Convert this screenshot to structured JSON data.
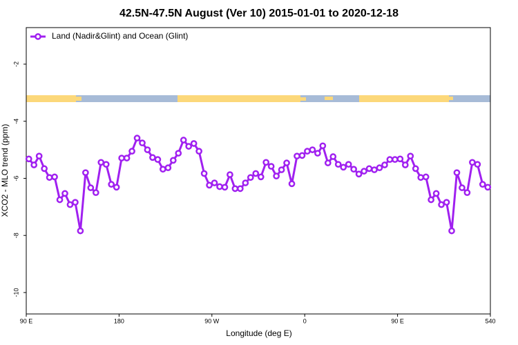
{
  "chart_data": {
    "type": "line",
    "title": "42.5N-47.5N August (Ver 10)   2015-01-01 to 2020-12-18",
    "x_label": "Longitude (deg E)",
    "y_label": "XCO2 - MLO trend (ppm)",
    "x": [
      92.5,
      97.5,
      102.5,
      107.5,
      112.5,
      117.5,
      122.5,
      127.5,
      132.5,
      137.5,
      142.5,
      147.5,
      152.5,
      157.5,
      162.5,
      167.5,
      172.5,
      177.5,
      182.5,
      187.5,
      192.5,
      197.5,
      202.5,
      207.5,
      212.5,
      217.5,
      222.5,
      227.5,
      232.5,
      237.5,
      242.5,
      247.5,
      252.5,
      257.5,
      262.5,
      267.5,
      272.5,
      277.5,
      282.5,
      287.5,
      292.5,
      297.5,
      302.5,
      307.5,
      312.5,
      317.5,
      322.5,
      327.5,
      332.5,
      337.5,
      342.5,
      347.5,
      352.5,
      357.5,
      362.5,
      367.5,
      372.5,
      377.5,
      382.5,
      387.5,
      392.5,
      397.5,
      402.5,
      407.5,
      412.5,
      417.5,
      422.5,
      427.5,
      432.5,
      437.5,
      442.5,
      447.5,
      452.5,
      457.5,
      462.5,
      467.5,
      472.5,
      477.5,
      482.5,
      487.5,
      492.5,
      497.5,
      502.5,
      507.5,
      512.5,
      517.5,
      522.5,
      527.5,
      532.5,
      537.5
    ],
    "series": [
      {
        "name": "Land (Nadir&Glint) and Ocean (Glint)",
        "color": "#a020f0",
        "values": [
          -5.32,
          -5.53,
          -5.22,
          -5.66,
          -5.97,
          -5.95,
          -6.75,
          -6.53,
          -6.92,
          -6.84,
          -7.84,
          -5.8,
          -6.33,
          -6.5,
          -5.44,
          -5.51,
          -6.21,
          -6.31,
          -5.29,
          -5.29,
          -5.05,
          -4.59,
          -4.76,
          -5.0,
          -5.27,
          -5.34,
          -5.68,
          -5.63,
          -5.37,
          -5.12,
          -4.66,
          -4.88,
          -4.78,
          -5.05,
          -5.83,
          -6.24,
          -6.16,
          -6.29,
          -6.31,
          -5.87,
          -6.36,
          -6.36,
          -6.16,
          -5.97,
          -5.83,
          -5.95,
          -5.44,
          -5.58,
          -5.92,
          -5.7,
          -5.46,
          -6.19,
          -5.22,
          -5.2,
          -5.05,
          -5.0,
          -5.12,
          -4.86,
          -5.46,
          -5.24,
          -5.51,
          -5.61,
          -5.51,
          -5.68,
          -5.85,
          -5.75,
          -5.66,
          -5.7,
          -5.63,
          -5.53,
          -5.34,
          -5.34,
          -5.32,
          -5.53,
          -5.22,
          -5.66,
          -5.97,
          -5.95,
          -6.75,
          -6.53,
          -6.92,
          -6.84,
          -7.84,
          -5.8,
          -6.33,
          -6.5,
          -5.44,
          -5.51,
          -6.21,
          -6.31
        ]
      }
    ],
    "xlim": [
      90,
      540
    ],
    "xticks": [
      {
        "value": 90,
        "label": "90 E"
      },
      180,
      {
        "value": 270,
        "label": "90 W"
      },
      {
        "value": 360,
        "label": "0"
      },
      {
        "value": 450,
        "label": "90 E"
      },
      540
    ],
    "ylim": [
      -10.75,
      -0.72
    ],
    "yticks": [
      -10,
      -8,
      -6,
      -4,
      -2
    ],
    "legend": "top-left",
    "grid": false
  }
}
